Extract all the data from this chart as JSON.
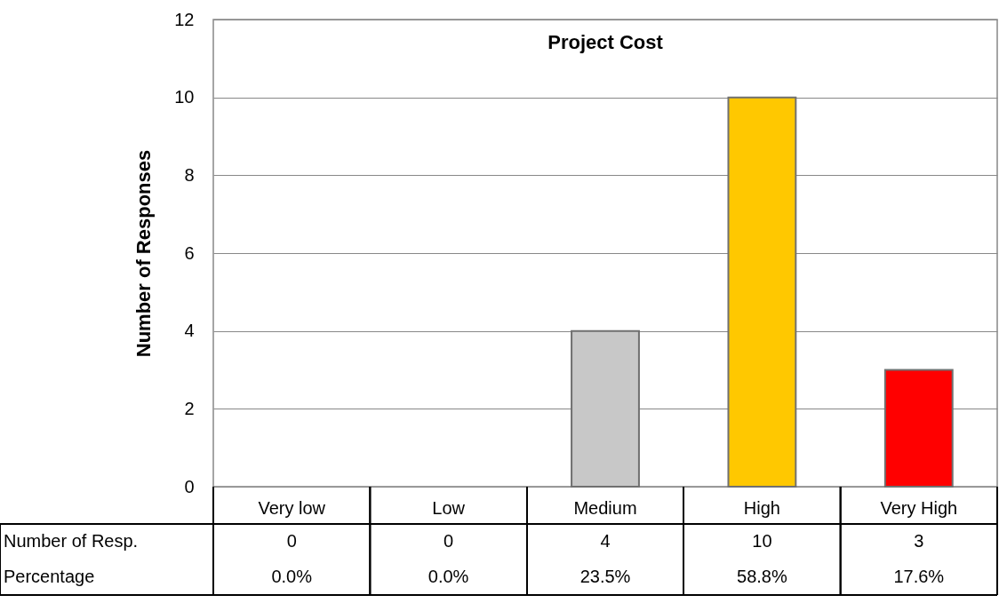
{
  "chart_data": {
    "type": "bar",
    "title": "Project Cost",
    "ylabel": "Number of Responses",
    "categories": [
      "Very low",
      "Low",
      "Medium",
      "High",
      "Very High"
    ],
    "values": [
      0,
      0,
      4,
      10,
      3
    ],
    "colors": [
      "#c8c8c8",
      "#c8c8c8",
      "#c8c8c8",
      "#ffc800",
      "#ff0000"
    ],
    "ylim": [
      0,
      12
    ],
    "yticks": [
      0,
      2,
      4,
      6,
      8,
      10,
      12
    ],
    "grid": "y",
    "data_labels": true,
    "annotations": [
      "Number of Resp.",
      "Percentage",
      "0.0%",
      "0.0%",
      "23.5%",
      "58.8%",
      "17.6%"
    ]
  }
}
